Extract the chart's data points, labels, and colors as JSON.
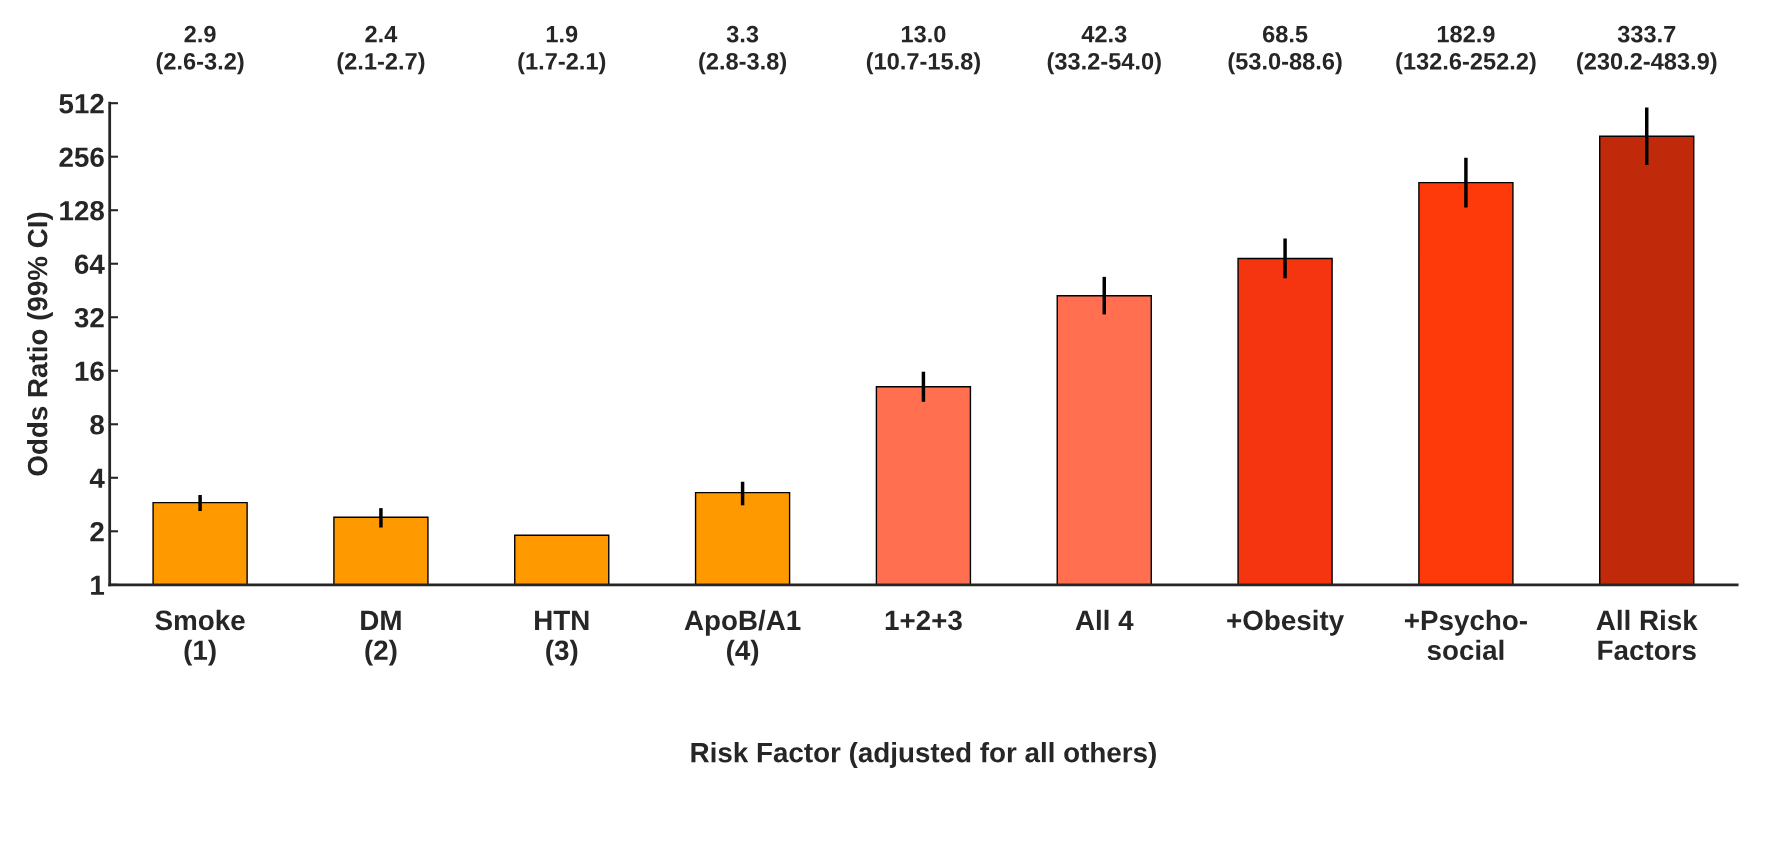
{
  "chart_data": {
    "type": "bar",
    "xlabel": "Risk Factor (adjusted for all others)",
    "ylabel": "Odds Ratio (99% CI)",
    "categories": [
      "Smoke\n(1)",
      "DM\n(2)",
      "HTN\n(3)",
      "ApoB/A1\n(4)",
      "1+2+3",
      "All 4",
      "+Obesity",
      "+Psycho-\nsocial",
      "All Risk\nFactors"
    ],
    "values": [
      2.9,
      2.4,
      1.9,
      3.3,
      13.0,
      42.3,
      68.5,
      182.9,
      333.7
    ],
    "errors": [
      [
        2.6,
        3.2
      ],
      [
        2.1,
        2.7
      ],
      null,
      [
        2.8,
        3.8
      ],
      [
        10.7,
        15.8
      ],
      [
        33.2,
        54.0
      ],
      [
        53.0,
        88.6
      ],
      [
        132.6,
        252.2
      ],
      [
        230.2,
        483.9
      ]
    ],
    "value_labels": [
      "2.9\n(2.6-3.2)",
      "2.4\n(2.1-2.7)",
      "1.9\n(1.7-2.1)",
      "3.3\n(2.8-3.8)",
      "13.0\n(10.7-15.8)",
      "42.3\n(33.2-54.0)",
      "68.5\n(53.0-88.6)",
      "182.9\n(132.6-252.2)",
      "333.7\n(230.2-483.9)"
    ],
    "colors": [
      "#ff9900",
      "#ff9900",
      "#ff9900",
      "#ff9900",
      "#ff6f50",
      "#ff6f50",
      "#f53510",
      "#ff3a0a",
      "#c02a0a"
    ],
    "log": "y",
    "ylim": [
      1,
      512
    ],
    "yticks": [
      1,
      2,
      4,
      8,
      16,
      32,
      64,
      128,
      256,
      512
    ],
    "grid": false,
    "legend": false
  }
}
